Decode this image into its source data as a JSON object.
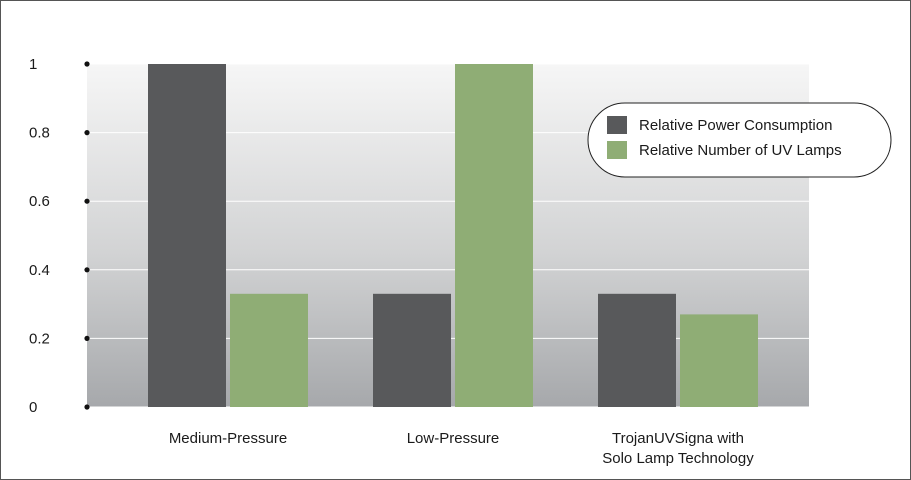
{
  "chart_data": {
    "type": "bar",
    "categories": [
      [
        "Medium-Pressure"
      ],
      [
        "Low-Pressure"
      ],
      [
        "TrojanUVSigna with",
        "Solo Lamp Technology"
      ]
    ],
    "series": [
      {
        "name": "Relative Power Consumption",
        "color": "#58595b",
        "values": [
          1.0,
          0.33,
          0.33
        ]
      },
      {
        "name": "Relative Number of UV Lamps",
        "color": "#8fad75",
        "values": [
          0.33,
          1.0,
          0.27
        ]
      }
    ],
    "yticks": [
      "0",
      "0.2",
      "0.4",
      "0.6",
      "0.8",
      "1"
    ],
    "ylim": [
      0,
      1.0
    ],
    "grid": true,
    "legend": "top-right",
    "title": "",
    "xlabel": "",
    "ylabel": ""
  }
}
